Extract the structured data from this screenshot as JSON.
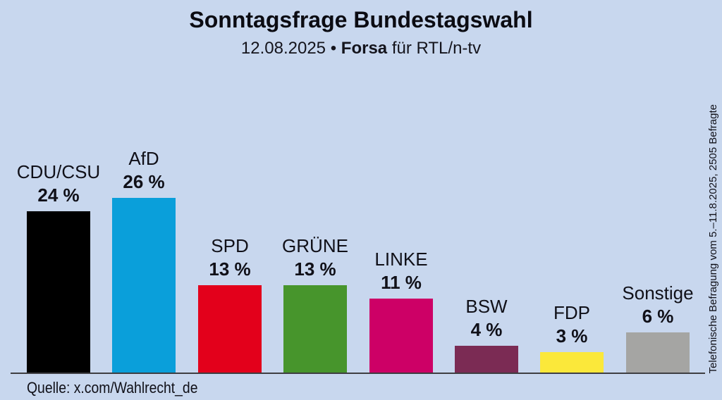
{
  "header": {
    "title": "Sonntagsfrage Bundestagswahl",
    "date": "12.08.2025",
    "separator": "•",
    "institute": "Forsa",
    "client": "für RTL/n-tv"
  },
  "chart_data": {
    "type": "bar",
    "title": "Sonntagsfrage Bundestagswahl",
    "subtitle": "12.08.2025 • Forsa für RTL/n-tv",
    "unit": "%",
    "ylim": [
      0,
      28
    ],
    "grid": false,
    "legend": "none",
    "categories": [
      "CDU/CSU",
      "AfD",
      "SPD",
      "GRÜNE",
      "LINKE",
      "BSW",
      "FDP",
      "Sonstige"
    ],
    "values": [
      24,
      26,
      13,
      13,
      11,
      4,
      3,
      6
    ],
    "parties": [
      {
        "name": "CDU/CSU",
        "value": 24,
        "value_label": "24 %",
        "color": "#000000"
      },
      {
        "name": "AfD",
        "value": 26,
        "value_label": "26 %",
        "color": "#0a9fda"
      },
      {
        "name": "SPD",
        "value": 13,
        "value_label": "13 %",
        "color": "#e3001b"
      },
      {
        "name": "GRÜNE",
        "value": 13,
        "value_label": "13 %",
        "color": "#47952c"
      },
      {
        "name": "LINKE",
        "value": 11,
        "value_label": "11 %",
        "color": "#cd0066"
      },
      {
        "name": "BSW",
        "value": 4,
        "value_label": "4 %",
        "color": "#7b2b54"
      },
      {
        "name": "FDP",
        "value": 3,
        "value_label": "3 %",
        "color": "#fbe83a"
      },
      {
        "name": "Sonstige",
        "value": 6,
        "value_label": "6 %",
        "color": "#a5a5a3"
      }
    ]
  },
  "footer": {
    "source": "Quelle: x.com/Wahlrecht_de"
  },
  "side_note": {
    "text": "Telefonische Befragung vom 5.–11.8.2025, 2505 Befragte"
  },
  "colors": {
    "background": "#c8d7ee",
    "text": "#101018",
    "axis": "#3e3e42"
  }
}
